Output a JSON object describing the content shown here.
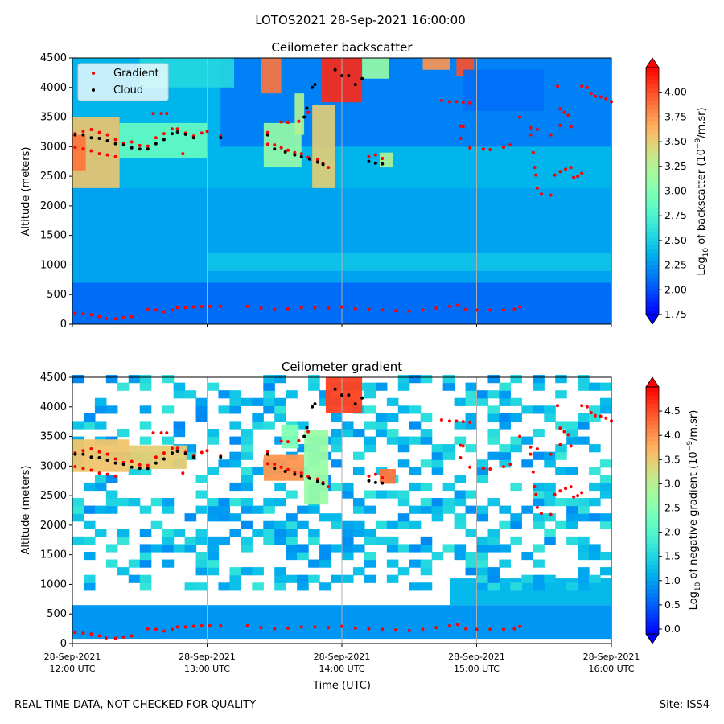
{
  "suptitle": "LOTOS2021 28-Sep-2021 16:00:00",
  "footer": {
    "left": "REAL TIME DATA, NOT CHECKED FOR QUALITY",
    "right": "Site: ISS4"
  },
  "chart_data": [
    {
      "type": "heatmap",
      "title": "Ceilometer backscatter",
      "ylabel": "Altitude (meters)",
      "xlabel": "",
      "xlim": [
        "28-Sep-2021 12:00",
        "28-Sep-2021 16:00"
      ],
      "ylim": [
        0,
        4500
      ],
      "yticks": [
        "0",
        "500",
        "1000",
        "1500",
        "2000",
        "2500",
        "3000",
        "3500",
        "4000",
        "4500"
      ],
      "xticks": [],
      "grid": "vertical lines at each hour",
      "legend": {
        "placement": "top-left",
        "entries": [
          {
            "label": "Gradient",
            "color": "#ff0000"
          },
          {
            "label": "Cloud",
            "color": "#000000"
          }
        ]
      },
      "colorbar": {
        "label": "Log10 of backscatter (10^-9/m.sr)",
        "label_base": "Log",
        "label_sub": "10",
        "label_mid": " of backscatter (10",
        "label_sup": "−9",
        "label_end": "/m.sr)",
        "range": [
          1.75,
          4.25
        ],
        "ticks": [
          "1.75",
          "2.00",
          "2.25",
          "2.50",
          "2.75",
          "3.00",
          "3.25",
          "3.50",
          "3.75",
          "4.00"
        ],
        "colormap": "rainbow"
      },
      "series": [
        {
          "name": "Gradient",
          "color": "#ff0000",
          "points": [
            [
              12.02,
              185
            ],
            [
              12.08,
              175
            ],
            [
              12.14,
              160
            ],
            [
              12.2,
              130
            ],
            [
              12.25,
              95
            ],
            [
              12.32,
              90
            ],
            [
              12.38,
              110
            ],
            [
              12.44,
              130
            ],
            [
              12.56,
              250
            ],
            [
              12.62,
              240
            ],
            [
              12.68,
              210
            ],
            [
              12.74,
              240
            ],
            [
              12.78,
              280
            ],
            [
              12.84,
              280
            ],
            [
              12.9,
              290
            ],
            [
              12.96,
              300
            ],
            [
              13.02,
              300
            ],
            [
              13.1,
              300
            ],
            [
              13.3,
              300
            ],
            [
              13.4,
              270
            ],
            [
              13.5,
              250
            ],
            [
              13.6,
              260
            ],
            [
              13.7,
              280
            ],
            [
              13.8,
              280
            ],
            [
              13.9,
              270
            ],
            [
              14.0,
              290
            ],
            [
              14.1,
              260
            ],
            [
              14.2,
              250
            ],
            [
              14.3,
              240
            ],
            [
              14.4,
              230
            ],
            [
              14.5,
              220
            ],
            [
              14.6,
              240
            ],
            [
              14.7,
              270
            ],
            [
              14.8,
              300
            ],
            [
              14.86,
              320
            ],
            [
              14.92,
              250
            ],
            [
              15.0,
              240
            ],
            [
              15.1,
              240
            ],
            [
              15.2,
              240
            ],
            [
              15.28,
              250
            ],
            [
              15.32,
              290
            ],
            [
              12.02,
              3220
            ],
            [
              12.08,
              3260
            ],
            [
              12.14,
              3290
            ],
            [
              12.2,
              3240
            ],
            [
              12.26,
              3200
            ],
            [
              12.32,
              3120
            ],
            [
              12.38,
              3060
            ],
            [
              12.44,
              3080
            ],
            [
              12.5,
              3020
            ],
            [
              12.56,
              3010
            ],
            [
              12.62,
              3150
            ],
            [
              12.68,
              3220
            ],
            [
              12.74,
              3300
            ],
            [
              12.78,
              3300
            ],
            [
              12.84,
              3230
            ],
            [
              12.9,
              3180
            ],
            [
              12.96,
              3230
            ],
            [
              13.0,
              3260
            ],
            [
              13.1,
              3180
            ],
            [
              13.45,
              3240
            ],
            [
              13.5,
              3030
            ],
            [
              13.55,
              2980
            ],
            [
              13.6,
              2940
            ],
            [
              13.65,
              2900
            ],
            [
              13.7,
              2880
            ],
            [
              13.75,
              2820
            ],
            [
              13.82,
              2780
            ],
            [
              13.86,
              2720
            ],
            [
              13.9,
              2650
            ],
            [
              12.02,
              2990
            ],
            [
              12.08,
              2960
            ],
            [
              12.14,
              2930
            ],
            [
              12.2,
              2880
            ],
            [
              12.26,
              2860
            ],
            [
              12.32,
              2830
            ],
            [
              12.82,
              2880
            ],
            [
              13.45,
              3040
            ],
            [
              13.55,
              3420
            ],
            [
              13.6,
              3410
            ],
            [
              12.6,
              3560
            ],
            [
              12.66,
              3560
            ],
            [
              12.7,
              3560
            ],
            [
              13.68,
              3430
            ],
            [
              13.75,
              3580
            ],
            [
              14.2,
              2830
            ],
            [
              14.25,
              2860
            ],
            [
              14.3,
              2800
            ],
            [
              14.74,
              3780
            ],
            [
              14.8,
              3760
            ],
            [
              14.85,
              3760
            ],
            [
              14.9,
              3750
            ],
            [
              14.95,
              3740
            ],
            [
              14.88,
              3350
            ],
            [
              14.9,
              3340
            ],
            [
              14.88,
              3140
            ],
            [
              14.95,
              2980
            ],
            [
              15.05,
              2960
            ],
            [
              15.1,
              2950
            ],
            [
              15.2,
              2990
            ],
            [
              15.25,
              3030
            ],
            [
              15.32,
              3500
            ],
            [
              15.4,
              3320
            ],
            [
              15.45,
              3290
            ],
            [
              15.55,
              3200
            ],
            [
              15.62,
              3360
            ],
            [
              15.7,
              3340
            ],
            [
              15.6,
              4020
            ],
            [
              15.62,
              3640
            ],
            [
              15.65,
              3580
            ],
            [
              15.68,
              3530
            ],
            [
              15.4,
              3200
            ],
            [
              15.42,
              2900
            ],
            [
              15.43,
              2650
            ],
            [
              15.44,
              2520
            ],
            [
              15.45,
              2300
            ],
            [
              15.48,
              2200
            ],
            [
              15.55,
              2180
            ],
            [
              15.58,
              2520
            ],
            [
              15.62,
              2580
            ],
            [
              15.66,
              2620
            ],
            [
              15.7,
              2650
            ],
            [
              15.72,
              2480
            ],
            [
              15.75,
              2500
            ],
            [
              15.78,
              2550
            ],
            [
              15.78,
              4020
            ],
            [
              15.82,
              4000
            ],
            [
              15.85,
              3900
            ],
            [
              15.88,
              3850
            ],
            [
              15.92,
              3840
            ],
            [
              15.96,
              3810
            ],
            [
              16.0,
              3760
            ]
          ]
        },
        {
          "name": "Cloud",
          "color": "#000000",
          "points": [
            [
              12.02,
              3200
            ],
            [
              12.08,
              3200
            ],
            [
              12.14,
              3150
            ],
            [
              12.2,
              3140
            ],
            [
              12.26,
              3100
            ],
            [
              12.32,
              3050
            ],
            [
              12.38,
              3030
            ],
            [
              12.44,
              2980
            ],
            [
              12.5,
              2960
            ],
            [
              12.56,
              2960
            ],
            [
              12.62,
              3050
            ],
            [
              12.68,
              3120
            ],
            [
              12.74,
              3220
            ],
            [
              12.78,
              3250
            ],
            [
              12.84,
              3210
            ],
            [
              12.9,
              3150
            ],
            [
              13.1,
              3150
            ],
            [
              13.45,
              3200
            ],
            [
              13.5,
              2960
            ],
            [
              13.58,
              2910
            ],
            [
              13.65,
              2860
            ],
            [
              13.7,
              2830
            ],
            [
              13.76,
              2790
            ],
            [
              13.82,
              2740
            ],
            [
              13.86,
              2700
            ],
            [
              13.72,
              3500
            ],
            [
              13.74,
              3650
            ],
            [
              13.78,
              4000
            ],
            [
              13.8,
              4050
            ],
            [
              13.95,
              4300
            ],
            [
              14.0,
              4200
            ],
            [
              14.05,
              4200
            ],
            [
              14.1,
              4050
            ],
            [
              14.2,
              2750
            ],
            [
              14.25,
              2720
            ],
            [
              14.3,
              2710
            ],
            [
              14.15,
              4150
            ]
          ]
        }
      ]
    },
    {
      "type": "heatmap",
      "title": "Ceilometer gradient",
      "ylabel": "Altitude (meters)",
      "xlabel": "Time (UTC)",
      "xlim": [
        "28-Sep-2021 12:00",
        "28-Sep-2021 16:00"
      ],
      "ylim": [
        0,
        4500
      ],
      "yticks": [
        "0",
        "500",
        "1000",
        "1500",
        "2000",
        "2500",
        "3000",
        "3500",
        "4000",
        "4500"
      ],
      "xticks": [
        {
          "line1": "28-Sep-2021",
          "line2": "12:00 UTC",
          "t": 12
        },
        {
          "line1": "28-Sep-2021",
          "line2": "13:00 UTC",
          "t": 13
        },
        {
          "line1": "28-Sep-2021",
          "line2": "14:00 UTC",
          "t": 14
        },
        {
          "line1": "28-Sep-2021",
          "line2": "15:00 UTC",
          "t": 15
        },
        {
          "line1": "28-Sep-2021",
          "line2": "16:00 UTC",
          "t": 16
        }
      ],
      "grid": "vertical lines at each hour",
      "colorbar": {
        "label": "Log10 of negative gradient (10^-9/m.sr)",
        "label_base": "Log",
        "label_sub": "10",
        "label_mid": " of negative gradient (10",
        "label_sup": "−9",
        "label_end": "/m.sr)",
        "range": [
          -0.1,
          5.0
        ],
        "ticks": [
          "0.0",
          "0.5",
          "1.0",
          "1.5",
          "2.0",
          "2.5",
          "3.0",
          "3.5",
          "4.0",
          "4.5"
        ],
        "colormap": "rainbow"
      },
      "series": [
        {
          "name": "Gradient",
          "color": "#ff0000",
          "same_as_panel": 0
        },
        {
          "name": "Cloud",
          "color": "#000000",
          "same_as_panel": 0
        }
      ]
    }
  ]
}
